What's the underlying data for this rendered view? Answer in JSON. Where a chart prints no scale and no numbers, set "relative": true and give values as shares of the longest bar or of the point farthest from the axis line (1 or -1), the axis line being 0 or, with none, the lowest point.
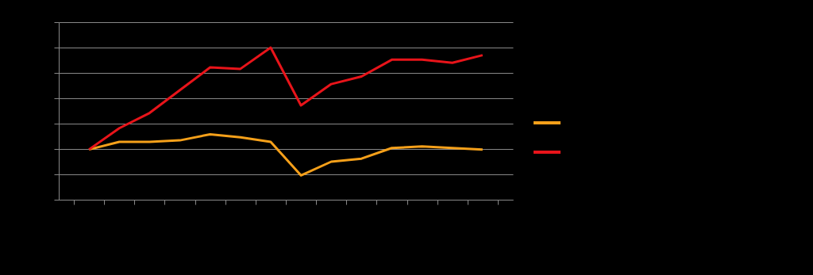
{
  "chart_data": {
    "type": "line",
    "relative": true,
    "categories": [
      null,
      null,
      null,
      null,
      null,
      null,
      null,
      null,
      null,
      null,
      null,
      null,
      null,
      null
    ],
    "series": [
      {
        "color": "#f5a01a",
        "values": [
          0.33,
          0.38,
          0.38,
          0.39,
          0.43,
          0.41,
          0.38,
          0.16,
          0.25,
          0.27,
          0.34,
          0.35,
          0.34,
          0.33
        ]
      },
      {
        "color": "#e8141a",
        "values": [
          0.33,
          0.47,
          0.57,
          0.72,
          0.87,
          0.86,
          1,
          0.62,
          0.76,
          0.81,
          0.92,
          0.92,
          0.9,
          0.95
        ]
      }
    ],
    "grid": "y"
  }
}
